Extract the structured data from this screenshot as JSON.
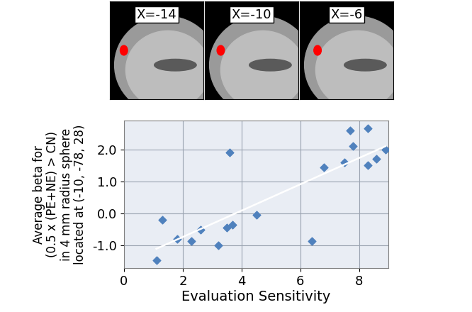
{
  "chart_data": {
    "type": "scatter",
    "panels": [
      "X=-14",
      "X=-10",
      "X=-6"
    ],
    "x_label": "Evaluation Sensitivity",
    "y_label": "Average beta for\n(0.5 x (PE+NE) > CN)\nin 4 mm radius sphere\nlocated at (-10, -78, 28)",
    "x": [
      1.1,
      1.3,
      1.8,
      2.3,
      2.6,
      3.2,
      3.5,
      3.6,
      3.7,
      4.5,
      6.4,
      6.8,
      7.5,
      7.7,
      7.8,
      8.3,
      8.3,
      8.6,
      8.9
    ],
    "values": [
      -1.45,
      -0.2,
      -0.8,
      -0.85,
      -0.5,
      -1.0,
      -0.45,
      1.9,
      -0.35,
      -0.05,
      -0.85,
      1.45,
      1.6,
      2.6,
      2.1,
      2.65,
      1.5,
      1.7,
      2.0
    ],
    "color": "#4f81bd",
    "marker": "diamond",
    "fit_line": {
      "x": [
        1.1,
        8.9
      ],
      "values": [
        -1.1,
        2.1
      ],
      "color": "#ffffff"
    },
    "xlim": [
      0,
      9
    ],
    "xticks": [
      0,
      2,
      4,
      6,
      8
    ],
    "ylim": [
      -1.7,
      2.9
    ],
    "yticks": [
      {
        "value": -1,
        "label": "-1.0"
      },
      {
        "value": 0,
        "label": "0.0"
      },
      {
        "value": 1,
        "label": "1.0"
      },
      {
        "value": 2,
        "label": "2.0"
      }
    ],
    "grid": true
  }
}
